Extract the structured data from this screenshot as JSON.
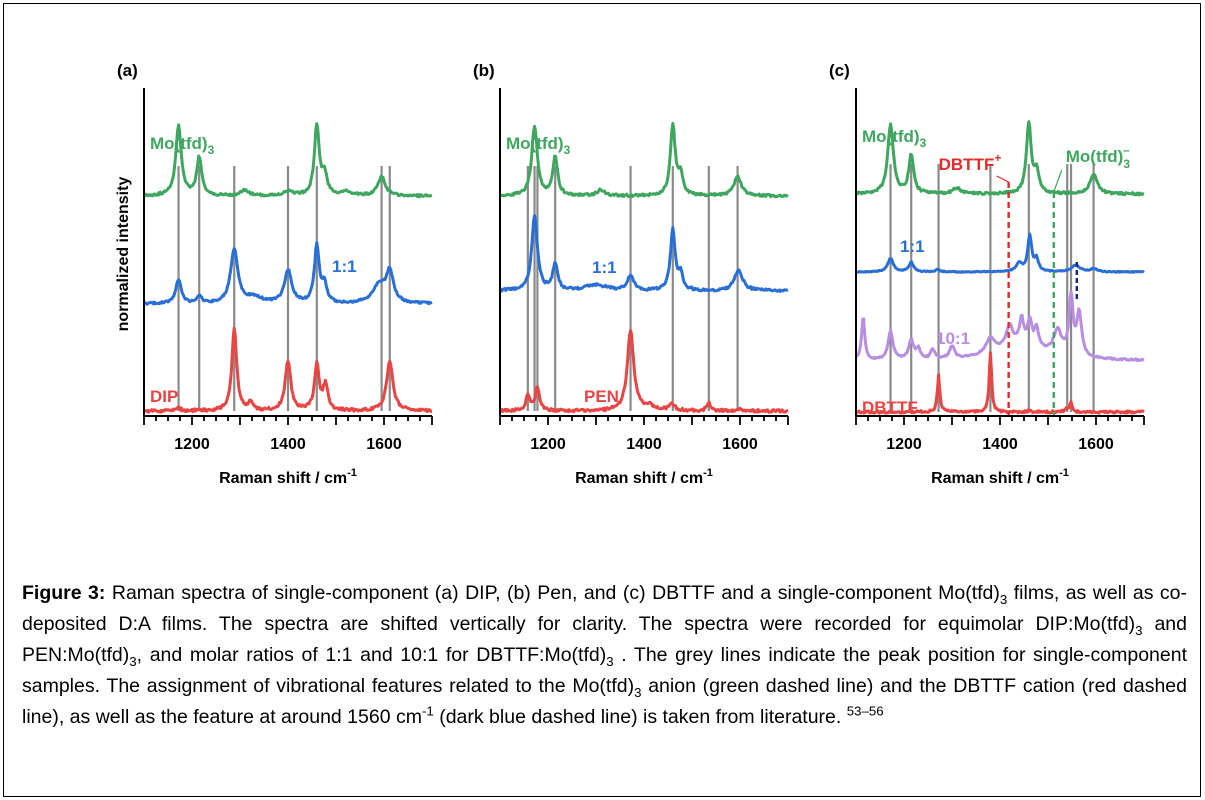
{
  "figure": {
    "y_axis_label": "normalized intensity",
    "x_axis_label": "Raman shift / cm",
    "x_axis_label_sup": "-1",
    "x_ticks": [
      1200,
      1400,
      1600
    ],
    "x_range": [
      1100,
      1700
    ],
    "panels": [
      {
        "id": "a",
        "label": "(a)",
        "spectra": [
          {
            "name": "Mo(tfd)",
            "name_sub": "3",
            "color": "#3fa660",
            "peaks": [
              [
                1172,
                1.0,
                7
              ],
              [
                1215,
                0.55,
                6
              ],
              [
                1310,
                0.08,
                10
              ],
              [
                1400,
                0.06,
                12
              ],
              [
                1460,
                1.0,
                6
              ],
              [
                1476,
                0.3,
                6
              ],
              [
                1520,
                0.05,
                15
              ],
              [
                1595,
                0.28,
                9
              ]
            ]
          },
          {
            "name": "1:1",
            "color": "#2a6fd6",
            "peaks": [
              [
                1172,
                0.4,
                7
              ],
              [
                1215,
                0.12,
                6
              ],
              [
                1288,
                0.9,
                9
              ],
              [
                1400,
                0.55,
                9
              ],
              [
                1460,
                0.95,
                6
              ],
              [
                1476,
                0.3,
                6
              ],
              [
                1590,
                0.3,
                16
              ],
              [
                1612,
                0.5,
                9
              ],
              [
                1330,
                0.1,
                20
              ]
            ]
          },
          {
            "name": "DIP",
            "color": "#e84545",
            "peaks": [
              [
                1172,
                0.03,
                6
              ],
              [
                1288,
                1.0,
                6
              ],
              [
                1322,
                0.1,
                5
              ],
              [
                1400,
                0.6,
                7
              ],
              [
                1460,
                0.55,
                6
              ],
              [
                1478,
                0.3,
                6
              ],
              [
                1612,
                0.6,
                8
              ]
            ]
          }
        ],
        "grey_lines": [
          1172,
          1215,
          1288,
          1400,
          1460,
          1595,
          1612
        ]
      },
      {
        "id": "b",
        "label": "(b)",
        "spectra": [
          {
            "name": "Mo(tfd)",
            "name_sub": "3",
            "color": "#3fa660",
            "peaks": [
              [
                1172,
                1.0,
                7
              ],
              [
                1215,
                0.55,
                6
              ],
              [
                1310,
                0.08,
                10
              ],
              [
                1460,
                1.0,
                6
              ],
              [
                1476,
                0.3,
                6
              ],
              [
                1595,
                0.28,
                9
              ]
            ]
          },
          {
            "name": "1:1",
            "color": "#2a6fd6",
            "peaks": [
              [
                1172,
                1.0,
                7
              ],
              [
                1215,
                0.35,
                6
              ],
              [
                1300,
                0.08,
                25
              ],
              [
                1372,
                0.2,
                8
              ],
              [
                1460,
                0.8,
                6
              ],
              [
                1476,
                0.2,
                6
              ],
              [
                1597,
                0.28,
                10
              ]
            ]
          },
          {
            "name": "PEN",
            "color": "#e84545",
            "peaks": [
              [
                1158,
                0.2,
                5
              ],
              [
                1178,
                0.3,
                5
              ],
              [
                1372,
                1.0,
                8
              ],
              [
                1410,
                0.06,
                10
              ],
              [
                1458,
                0.08,
                8
              ],
              [
                1535,
                0.1,
                5
              ],
              [
                1600,
                0.03,
                5
              ]
            ]
          }
        ],
        "grey_lines": [
          1158,
          1172,
          1178,
          1215,
          1372,
          1460,
          1535,
          1595
        ]
      },
      {
        "id": "c",
        "label": "(c)",
        "spectra": [
          {
            "name": "Mo(tfd)",
            "name_sub": "3",
            "color": "#3fa660",
            "peaks": [
              [
                1172,
                1.0,
                7
              ],
              [
                1215,
                0.55,
                6
              ],
              [
                1310,
                0.08,
                10
              ],
              [
                1460,
                1.0,
                6
              ],
              [
                1476,
                0.3,
                6
              ],
              [
                1595,
                0.28,
                9
              ]
            ]
          },
          {
            "name": "1:1",
            "color": "#2a6fd6",
            "peaks": [
              [
                1172,
                0.5,
                7
              ],
              [
                1215,
                0.35,
                6
              ],
              [
                1270,
                0.08,
                6
              ],
              [
                1440,
                0.3,
                8
              ],
              [
                1462,
                1.3,
                5
              ],
              [
                1476,
                0.45,
                5
              ],
              [
                1558,
                0.25,
                10
              ],
              [
                1595,
                0.12,
                8
              ]
            ]
          },
          {
            "name": "10:1",
            "color": "#b88ee0",
            "peaks": [
              [
                1115,
                0.9,
                4
              ],
              [
                1172,
                0.6,
                6
              ],
              [
                1215,
                0.4,
                6
              ],
              [
                1230,
                0.2,
                5
              ],
              [
                1260,
                0.2,
                5
              ],
              [
                1300,
                0.25,
                6
              ],
              [
                1380,
                0.3,
                10
              ],
              [
                1420,
                0.4,
                8
              ],
              [
                1445,
                0.5,
                5
              ],
              [
                1462,
                0.5,
                5
              ],
              [
                1476,
                0.4,
                5
              ],
              [
                1520,
                0.5,
                10
              ],
              [
                1548,
                1.2,
                5
              ],
              [
                1565,
                0.9,
                6
              ],
              [
                1440,
                0.35,
                60
              ]
            ]
          },
          {
            "name": "DBTTF",
            "color": "#e84545",
            "peaks": [
              [
                1272,
                0.55,
                3
              ],
              [
                1380,
                0.9,
                3
              ],
              [
                1540,
                0.05,
                4
              ],
              [
                1548,
                0.15,
                3
              ],
              [
                1460,
                0.02,
                5
              ]
            ]
          }
        ],
        "grey_lines": [
          1172,
          1215,
          1272,
          1380,
          1460,
          1540,
          1548,
          1595
        ],
        "annotations": [
          {
            "text": "DBTTF",
            "sup": "+",
            "color": "#e52b2b",
            "x": 1418
          },
          {
            "text": "Mo(tfd)",
            "sub": "3",
            "sup": "–",
            "color": "#3fa660",
            "x": 1512
          }
        ],
        "dark_blue_line_x": 1560
      }
    ]
  },
  "caption": {
    "bold_label": "Figure 3:",
    "text_parts": [
      " Raman spectra of single-component (a) DIP, (b) Pen, and (c) DBTTF and a single-component Mo(tfd)",
      "3",
      " films, as well as co-deposited D:A films. The spectra are shifted vertically for clarity. The spectra were recorded for equimolar DIP:Mo(tfd)",
      "3",
      " and PEN:Mo(tfd)",
      "3",
      ", and molar ratios of 1:1 and 10:1 for DBTTF:Mo(tfd)",
      "3",
      " . The grey lines indicate the peak position for single-component samples. The assignment of vibrational features related to the Mo(tfd)",
      "3",
      " anion (green dashed line) and the DBTTF cation (red dashed line), as well as the feature at around 1560 cm",
      "-1",
      " (dark blue dashed line) is taken from literature. ",
      "53–56"
    ]
  }
}
